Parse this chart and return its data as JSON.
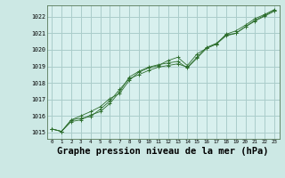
{
  "background_color": "#cce8e4",
  "plot_bg_color": "#d8f0ee",
  "grid_color": "#aaccca",
  "line_color": "#2d6e2d",
  "title": "Graphe pression niveau de la mer (hPa)",
  "title_fontsize": 7.5,
  "xlim": [
    -0.5,
    23.5
  ],
  "ylim": [
    1014.6,
    1022.7
  ],
  "yticks": [
    1015,
    1016,
    1017,
    1018,
    1019,
    1020,
    1021,
    1022
  ],
  "xticks": [
    0,
    1,
    2,
    3,
    4,
    5,
    6,
    7,
    8,
    9,
    10,
    11,
    12,
    13,
    14,
    15,
    16,
    17,
    18,
    19,
    20,
    21,
    22,
    23
  ],
  "series": [
    {
      "x": [
        0,
        1,
        2,
        3,
        4,
        5,
        6,
        7,
        8,
        9,
        10,
        11,
        12,
        13,
        14,
        15,
        16,
        17,
        18,
        19,
        20,
        21,
        22,
        23
      ],
      "y": [
        1015.2,
        1015.05,
        1015.75,
        1015.85,
        1015.95,
        1016.4,
        1016.9,
        1017.6,
        1018.25,
        1018.5,
        1018.75,
        1018.95,
        1019.05,
        1019.15,
        1018.95,
        1019.55,
        1020.15,
        1020.4,
        1020.9,
        1021.0,
        1021.4,
        1021.75,
        1022.05,
        1022.35
      ]
    },
    {
      "x": [
        0,
        1,
        2,
        3,
        4,
        5,
        6,
        7,
        8,
        9,
        10,
        11,
        12,
        13,
        14,
        15,
        16,
        17,
        18,
        19,
        20,
        21,
        22,
        23
      ],
      "y": [
        1015.2,
        1015.05,
        1015.75,
        1016.0,
        1016.25,
        1016.55,
        1017.05,
        1017.35,
        1018.15,
        1018.65,
        1018.9,
        1019.05,
        1019.35,
        1019.55,
        1019.05,
        1019.75,
        1020.1,
        1020.35,
        1020.95,
        1021.15,
        1021.5,
        1021.9,
        1022.15,
        1022.45
      ]
    },
    {
      "x": [
        0,
        1,
        2,
        3,
        4,
        5,
        6,
        7,
        8,
        9,
        10,
        11,
        12,
        13,
        14,
        15,
        16,
        17,
        18,
        19,
        20,
        21,
        22,
        23
      ],
      "y": [
        1015.2,
        1015.05,
        1015.65,
        1015.75,
        1016.05,
        1016.25,
        1016.75,
        1017.45,
        1018.35,
        1018.7,
        1018.95,
        1019.1,
        1019.2,
        1019.3,
        1018.9,
        1019.5,
        1020.1,
        1020.35,
        1020.85,
        1021.0,
        1021.4,
        1021.8,
        1022.1,
        1022.4
      ]
    }
  ]
}
